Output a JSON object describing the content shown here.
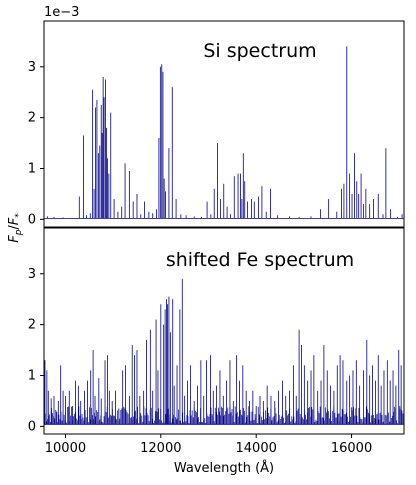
{
  "chart_data": [
    {
      "type": "line",
      "panel": "top",
      "annotation": "Si spectrum",
      "offset_label": "1e−3",
      "xlim": [
        9550,
        17100
      ],
      "ylim": [
        -0.00015,
        0.0039
      ],
      "yticks": [
        0,
        0.001,
        0.002,
        0.003
      ],
      "ytick_labels": [
        "0",
        "1",
        "2",
        "3"
      ],
      "line_color": "#00008b",
      "baseline": 2e-05,
      "lines": [
        [
          9620,
          6e-05
        ],
        [
          9760,
          5e-05
        ],
        [
          9950,
          4e-05
        ],
        [
          10120,
          3e-05
        ],
        [
          10290,
          0.00045
        ],
        [
          10380,
          0.00165
        ],
        [
          10440,
          8e-05
        ],
        [
          10520,
          0.00012
        ],
        [
          10570,
          0.00255
        ],
        [
          10600,
          0.0006
        ],
        [
          10630,
          0.0022
        ],
        [
          10660,
          0.00235
        ],
        [
          10690,
          0.0013
        ],
        [
          10720,
          0.00145
        ],
        [
          10750,
          0.00225
        ],
        [
          10770,
          0.0017
        ],
        [
          10790,
          0.0028
        ],
        [
          10810,
          0.0024
        ],
        [
          10840,
          0.00275
        ],
        [
          10860,
          0.0018
        ],
        [
          10880,
          0.0012
        ],
        [
          10910,
          0.0009
        ],
        [
          10950,
          0.0021
        ],
        [
          11020,
          0.0004
        ],
        [
          11100,
          0.00015
        ],
        [
          11180,
          0.00025
        ],
        [
          11250,
          0.0011
        ],
        [
          11340,
          0.00095
        ],
        [
          11420,
          0.00035
        ],
        [
          11500,
          0.0005
        ],
        [
          11580,
          0.0001
        ],
        [
          11660,
          0.00035
        ],
        [
          11750,
          0.00015
        ],
        [
          11830,
          0.00012
        ],
        [
          11910,
          0.0002
        ],
        [
          11960,
          0.0016
        ],
        [
          11990,
          0.003
        ],
        [
          12020,
          0.00305
        ],
        [
          12045,
          0.0029
        ],
        [
          12070,
          0.0008
        ],
        [
          12100,
          0.00055
        ],
        [
          12170,
          0.0014
        ],
        [
          12240,
          0.0026
        ],
        [
          12320,
          0.0004
        ],
        [
          12420,
          0.0001
        ],
        [
          12530,
          8e-05
        ],
        [
          12700,
          6e-05
        ],
        [
          12850,
          5e-05
        ],
        [
          12970,
          0.00035
        ],
        [
          13050,
          0.0001
        ],
        [
          13120,
          0.0006
        ],
        [
          13190,
          0.0015
        ],
        [
          13250,
          0.0004
        ],
        [
          13320,
          0.0007
        ],
        [
          13390,
          0.00025
        ],
        [
          13460,
          0.0001
        ],
        [
          13540,
          0.00085
        ],
        [
          13620,
          0.0009
        ],
        [
          13670,
          0.0009
        ],
        [
          13700,
          0.0004
        ],
        [
          13730,
          0.0013
        ],
        [
          13760,
          0.00075
        ],
        [
          13820,
          0.00035
        ],
        [
          13900,
          0.0004
        ],
        [
          13960,
          0.00035
        ],
        [
          14050,
          0.00045
        ],
        [
          14120,
          0.00065
        ],
        [
          14210,
          0.00015
        ],
        [
          14300,
          0.0006
        ],
        [
          14450,
          8e-05
        ],
        [
          14700,
          6e-05
        ],
        [
          14900,
          5e-05
        ],
        [
          15150,
          6e-05
        ],
        [
          15350,
          0.0002
        ],
        [
          15520,
          0.0004
        ],
        [
          15690,
          0.00015
        ],
        [
          15790,
          0.0006
        ],
        [
          15840,
          0.0007
        ],
        [
          15900,
          0.0034
        ],
        [
          15960,
          0.0009
        ],
        [
          16010,
          0.0005
        ],
        [
          16060,
          0.0013
        ],
        [
          16110,
          0.00075
        ],
        [
          16150,
          0.0005
        ],
        [
          16200,
          0.0009
        ],
        [
          16250,
          0.0003
        ],
        [
          16300,
          0.0006
        ],
        [
          16380,
          0.0003
        ],
        [
          16460,
          0.0004
        ],
        [
          16560,
          0.0005
        ],
        [
          16660,
          0.0001
        ],
        [
          16720,
          0.0014
        ],
        [
          16820,
          0.0002
        ],
        [
          16960,
          5e-05
        ],
        [
          17060,
          0.0001
        ]
      ]
    },
    {
      "type": "line",
      "panel": "bottom",
      "annotation": "shifted Fe spectrum",
      "xlabel": "Wavelength (Å)",
      "xlim": [
        9550,
        17100
      ],
      "ylim": [
        -0.00015,
        0.0039
      ],
      "xticks": [
        10000,
        12000,
        14000,
        16000
      ],
      "xtick_labels": [
        "10000",
        "12000",
        "14000",
        "16000"
      ],
      "yticks": [
        0,
        0.001,
        0.002,
        0.003
      ],
      "ytick_labels": [
        "0",
        "1",
        "2",
        "3"
      ],
      "line_color": "#00008b",
      "baseline": 4e-05,
      "noise_level": 0.0004,
      "lines": [
        [
          9570,
          0.0013
        ],
        [
          9610,
          0.0011
        ],
        [
          9640,
          0.0007
        ],
        [
          9700,
          0.00055
        ],
        [
          9760,
          0.0006
        ],
        [
          9800,
          0.0003
        ],
        [
          9850,
          0.0005
        ],
        [
          9900,
          0.0012
        ],
        [
          9950,
          0.0007
        ],
        [
          10000,
          0.0006
        ],
        [
          10080,
          0.0007
        ],
        [
          10150,
          0.0004
        ],
        [
          10210,
          0.0009
        ],
        [
          10270,
          0.0008
        ],
        [
          10320,
          0.0005
        ],
        [
          10400,
          0.0007
        ],
        [
          10460,
          0.0009
        ],
        [
          10530,
          0.0011
        ],
        [
          10580,
          0.0015
        ],
        [
          10620,
          0.0006
        ],
        [
          10700,
          0.00095
        ],
        [
          10750,
          0.00055
        ],
        [
          10830,
          0.0013
        ],
        [
          10880,
          0.0014
        ],
        [
          10920,
          0.0007
        ],
        [
          10980,
          0.0005
        ],
        [
          11050,
          0.0007
        ],
        [
          11120,
          0.00035
        ],
        [
          11200,
          0.0011
        ],
        [
          11260,
          0.0012
        ],
        [
          11340,
          0.0006
        ],
        [
          11400,
          0.0016
        ],
        [
          11450,
          0.0014
        ],
        [
          11500,
          0.0015
        ],
        [
          11560,
          0.0006
        ],
        [
          11640,
          0.0007
        ],
        [
          11700,
          0.0017
        ],
        [
          11780,
          0.0019
        ],
        [
          11830,
          0.0007
        ],
        [
          11900,
          0.0021
        ],
        [
          11940,
          0.0011
        ],
        [
          12000,
          0.0024
        ],
        [
          12060,
          0.002
        ],
        [
          12090,
          0.0023
        ],
        [
          12120,
          0.0025
        ],
        [
          12140,
          0.0024
        ],
        [
          12170,
          0.00255
        ],
        [
          12200,
          0.00185
        ],
        [
          12250,
          0.0025
        ],
        [
          12280,
          0.0008
        ],
        [
          12340,
          0.0012
        ],
        [
          12400,
          0.0023
        ],
        [
          12450,
          0.0029
        ],
        [
          12500,
          0.0006
        ],
        [
          12560,
          0.0009
        ],
        [
          12620,
          0.0012
        ],
        [
          12700,
          0.0005
        ],
        [
          12770,
          0.0008
        ],
        [
          12840,
          0.0013
        ],
        [
          12900,
          0.0006
        ],
        [
          12960,
          0.0013
        ],
        [
          13040,
          0.0014
        ],
        [
          13100,
          0.0007
        ],
        [
          13170,
          0.0008
        ],
        [
          13240,
          0.0011
        ],
        [
          13310,
          0.0006
        ],
        [
          13380,
          0.0009
        ],
        [
          13450,
          0.0013
        ],
        [
          13520,
          0.0005
        ],
        [
          13590,
          0.0014
        ],
        [
          13650,
          0.0009
        ],
        [
          13720,
          0.0012
        ],
        [
          13790,
          0.0007
        ],
        [
          13860,
          0.0005
        ],
        [
          13930,
          0.0007
        ],
        [
          14000,
          0.0004
        ],
        [
          14080,
          0.0006
        ],
        [
          14150,
          0.0005
        ],
        [
          14230,
          0.0008
        ],
        [
          14310,
          0.0006
        ],
        [
          14390,
          0.0005
        ],
        [
          14470,
          0.0007
        ],
        [
          14550,
          0.0009
        ],
        [
          14620,
          0.0006
        ],
        [
          14700,
          0.0007
        ],
        [
          14780,
          0.0012
        ],
        [
          14840,
          0.0006
        ],
        [
          14900,
          0.0019
        ],
        [
          14950,
          0.0016
        ],
        [
          15010,
          0.0012
        ],
        [
          15080,
          0.0009
        ],
        [
          15150,
          0.0011
        ],
        [
          15210,
          0.0014
        ],
        [
          15290,
          0.0007
        ],
        [
          15360,
          0.0009
        ],
        [
          15420,
          0.0016
        ],
        [
          15490,
          0.0011
        ],
        [
          15560,
          0.0008
        ],
        [
          15630,
          0.0007
        ],
        [
          15700,
          0.0012
        ],
        [
          15760,
          0.0014
        ],
        [
          15820,
          0.0013
        ],
        [
          15900,
          0.0009
        ],
        [
          15960,
          0.001
        ],
        [
          16030,
          0.0011
        ],
        [
          16100,
          0.0013
        ],
        [
          16170,
          0.0008
        ],
        [
          16250,
          0.0011
        ],
        [
          16320,
          0.0017
        ],
        [
          16380,
          0.001
        ],
        [
          16440,
          0.0012
        ],
        [
          16500,
          0.0009
        ],
        [
          16560,
          0.0014
        ],
        [
          16620,
          0.0008
        ],
        [
          16680,
          0.0011
        ],
        [
          16750,
          0.0013
        ],
        [
          16810,
          0.0009
        ],
        [
          16870,
          0.0011
        ],
        [
          16930,
          0.0008
        ],
        [
          16990,
          0.0015
        ],
        [
          17040,
          0.0012
        ]
      ]
    }
  ],
  "shared": {
    "ylabel": "F_p/F_*",
    "ylabel_main": "F",
    "ylabel_sub1": "p",
    "ylabel_sub2": "*",
    "axis_color": "#000000"
  }
}
